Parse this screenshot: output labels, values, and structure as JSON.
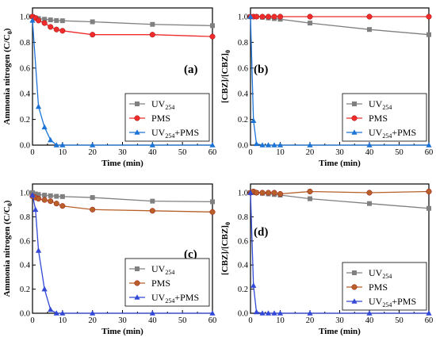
{
  "chart_data": [
    {
      "type": "line",
      "panel_label": "(a)",
      "xlabel": "Time (min)",
      "ylabel": "Ammonia nitrogen (C/C",
      "ylabel_sub": "0",
      "ylabel_tail": ")",
      "xlim": [
        0,
        60
      ],
      "ylim": [
        0,
        1.0
      ],
      "xticks": [
        "0",
        "10",
        "20",
        "30",
        "40",
        "50",
        "60"
      ],
      "yticks": [
        "0.0",
        "0.2",
        "0.4",
        "0.6",
        "0.8",
        "1.0"
      ],
      "legend_position": "bottom-right",
      "series": [
        {
          "name": "UV",
          "name_sub": "254",
          "name_tail": "",
          "color": "#808080",
          "marker": "square",
          "x": [
            0,
            1,
            2,
            4,
            6,
            8,
            10,
            20,
            40,
            60
          ],
          "y": [
            1.0,
            0.99,
            0.985,
            0.98,
            0.975,
            0.97,
            0.968,
            0.96,
            0.94,
            0.93
          ]
        },
        {
          "name": "PMS",
          "name_sub": "",
          "name_tail": "",
          "color": "#ef2b2b",
          "marker": "circle",
          "x": [
            0,
            1,
            2,
            4,
            6,
            8,
            10,
            20,
            40,
            60
          ],
          "y": [
            1.0,
            0.99,
            0.97,
            0.95,
            0.92,
            0.9,
            0.89,
            0.86,
            0.86,
            0.845
          ]
        },
        {
          "name": "UV",
          "name_sub": "254",
          "name_tail": "+PMS",
          "color": "#1b73d6",
          "marker": "triangle",
          "x": [
            0,
            2,
            4,
            6,
            8,
            10,
            20,
            40,
            60
          ],
          "y": [
            0.97,
            0.3,
            0.14,
            0.04,
            0.0,
            0.0,
            0.0,
            0.0,
            0.0
          ]
        }
      ]
    },
    {
      "type": "line",
      "panel_label": "(b)",
      "xlabel": "Time (min)",
      "ylabel": "[CBZ]/[CBZ]",
      "ylabel_sub": "0",
      "ylabel_tail": "",
      "xlim": [
        0,
        60
      ],
      "ylim": [
        0,
        1.0
      ],
      "xticks": [
        "0",
        "10",
        "20",
        "30",
        "40",
        "50",
        "60"
      ],
      "yticks": [
        "0.0",
        "0.2",
        "0.4",
        "0.6",
        "0.8",
        "1.0"
      ],
      "legend_position": "bottom-right",
      "series": [
        {
          "name": "UV",
          "name_sub": "254",
          "name_tail": "",
          "color": "#808080",
          "marker": "square",
          "x": [
            0,
            1,
            2,
            4,
            6,
            8,
            10,
            20,
            40,
            60
          ],
          "y": [
            1.0,
            1.0,
            1.0,
            0.995,
            0.99,
            0.985,
            0.98,
            0.95,
            0.9,
            0.86
          ]
        },
        {
          "name": "PMS",
          "name_sub": "",
          "name_tail": "",
          "color": "#ef2b2b",
          "marker": "circle",
          "x": [
            0,
            1,
            2,
            4,
            6,
            8,
            10,
            20,
            40,
            60
          ],
          "y": [
            1.0,
            1.0,
            1.0,
            1.0,
            1.0,
            1.0,
            1.0,
            1.0,
            1.0,
            1.0
          ]
        },
        {
          "name": "UV",
          "name_sub": "254",
          "name_tail": "+PMS",
          "color": "#1b73d6",
          "marker": "triangle",
          "x": [
            0,
            1,
            2,
            4,
            6,
            8,
            10,
            20,
            40,
            60
          ],
          "y": [
            1.0,
            0.19,
            0.01,
            0.0,
            0.0,
            0.0,
            0.0,
            0.0,
            0.0,
            0.0
          ]
        }
      ]
    },
    {
      "type": "line",
      "panel_label": "(c)",
      "xlabel": "Time (min)",
      "ylabel": "Ammonia nitrogen (C/C",
      "ylabel_sub": "0",
      "ylabel_tail": ")",
      "xlim": [
        0,
        60
      ],
      "ylim": [
        0,
        1.0
      ],
      "xticks": [
        "0",
        "10",
        "20",
        "30",
        "40",
        "50",
        "60"
      ],
      "yticks": [
        "0.0",
        "0.2",
        "0.4",
        "0.6",
        "0.8",
        "1.0"
      ],
      "legend_position": "bottom-right",
      "series": [
        {
          "name": "UV",
          "name_sub": "254",
          "name_tail": "",
          "color": "#808080",
          "marker": "square",
          "x": [
            0,
            1,
            2,
            4,
            6,
            8,
            10,
            20,
            40,
            60
          ],
          "y": [
            1.0,
            0.99,
            0.985,
            0.98,
            0.975,
            0.97,
            0.968,
            0.96,
            0.93,
            0.925
          ]
        },
        {
          "name": "PMS",
          "name_sub": "",
          "name_tail": "",
          "color": "#b7602a",
          "marker": "circle",
          "x": [
            0,
            1,
            2,
            4,
            6,
            8,
            10,
            20,
            40,
            60
          ],
          "y": [
            0.97,
            0.96,
            0.95,
            0.94,
            0.93,
            0.91,
            0.89,
            0.86,
            0.85,
            0.84
          ]
        },
        {
          "name": "UV",
          "name_sub": "254",
          "name_tail": "+PMS",
          "color": "#3248d6",
          "marker": "triangle",
          "x": [
            0,
            1,
            2,
            4,
            6,
            8,
            10,
            20,
            40,
            60
          ],
          "y": [
            0.98,
            0.86,
            0.52,
            0.2,
            0.03,
            0.0,
            0.0,
            0.0,
            0.0,
            0.0
          ]
        }
      ]
    },
    {
      "type": "line",
      "panel_label": "(d)",
      "xlabel": "Time (min)",
      "ylabel": "[CBZ]/[CBZ]",
      "ylabel_sub": "0",
      "ylabel_tail": "",
      "xlim": [
        0,
        60
      ],
      "ylim": [
        0,
        1.0
      ],
      "xticks": [
        "0",
        "10",
        "20",
        "30",
        "40",
        "50",
        "60"
      ],
      "yticks": [
        "0.0",
        "0.2",
        "0.4",
        "0.6",
        "0.8",
        "1.0"
      ],
      "legend_position": "bottom-right",
      "series": [
        {
          "name": "UV",
          "name_sub": "254",
          "name_tail": "",
          "color": "#808080",
          "marker": "square",
          "x": [
            0,
            1,
            2,
            4,
            6,
            8,
            10,
            20,
            40,
            60
          ],
          "y": [
            1.0,
            1.0,
            1.0,
            0.995,
            0.99,
            0.985,
            0.98,
            0.95,
            0.91,
            0.87
          ]
        },
        {
          "name": "PMS",
          "name_sub": "",
          "name_tail": "",
          "color": "#b7602a",
          "marker": "circle",
          "x": [
            0,
            1,
            2,
            4,
            6,
            8,
            10,
            20,
            40,
            60
          ],
          "y": [
            1.0,
            1.01,
            1.0,
            1.0,
            1.0,
            1.0,
            0.99,
            1.01,
            1.0,
            1.01
          ]
        },
        {
          "name": "UV",
          "name_sub": "254",
          "name_tail": "+PMS",
          "color": "#3248d6",
          "marker": "triangle",
          "x": [
            0,
            1,
            2,
            4,
            6,
            8,
            10,
            20,
            40,
            60
          ],
          "y": [
            1.0,
            0.23,
            0.01,
            0.0,
            0.0,
            0.0,
            0.0,
            0.0,
            0.0,
            0.0
          ]
        }
      ]
    }
  ]
}
